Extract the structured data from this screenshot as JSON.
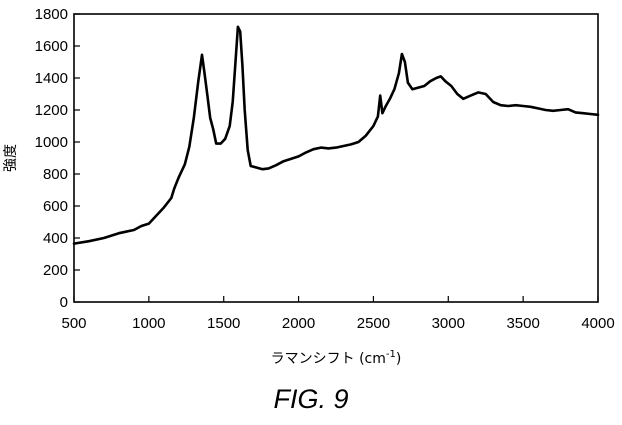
{
  "chart_data": {
    "type": "line",
    "xlabel": "ラマンシフト (cm",
    "xlabel_sup": "-1",
    "xlabel_tail": ")",
    "ylabel": "強度",
    "xlim": [
      500,
      4000
    ],
    "ylim": [
      0,
      1800
    ],
    "x_ticks": [
      500,
      1000,
      1500,
      2000,
      2500,
      3000,
      3500,
      4000
    ],
    "y_ticks": [
      0,
      200,
      400,
      600,
      800,
      1000,
      1200,
      1400,
      1600,
      1800
    ],
    "grid": false,
    "series": [
      {
        "color": "#000000",
        "points": [
          [
            500,
            365
          ],
          [
            600,
            380
          ],
          [
            700,
            400
          ],
          [
            800,
            430
          ],
          [
            900,
            450
          ],
          [
            950,
            475
          ],
          [
            1000,
            490
          ],
          [
            1050,
            540
          ],
          [
            1100,
            590
          ],
          [
            1150,
            650
          ],
          [
            1170,
            710
          ],
          [
            1200,
            780
          ],
          [
            1240,
            860
          ],
          [
            1270,
            970
          ],
          [
            1300,
            1150
          ],
          [
            1330,
            1380
          ],
          [
            1355,
            1545
          ],
          [
            1370,
            1440
          ],
          [
            1390,
            1300
          ],
          [
            1410,
            1150
          ],
          [
            1430,
            1080
          ],
          [
            1450,
            990
          ],
          [
            1480,
            990
          ],
          [
            1510,
            1020
          ],
          [
            1540,
            1100
          ],
          [
            1560,
            1250
          ],
          [
            1580,
            1520
          ],
          [
            1595,
            1720
          ],
          [
            1610,
            1690
          ],
          [
            1625,
            1480
          ],
          [
            1640,
            1200
          ],
          [
            1660,
            950
          ],
          [
            1680,
            850
          ],
          [
            1720,
            840
          ],
          [
            1760,
            830
          ],
          [
            1800,
            835
          ],
          [
            1850,
            855
          ],
          [
            1900,
            880
          ],
          [
            2000,
            910
          ],
          [
            2050,
            935
          ],
          [
            2100,
            955
          ],
          [
            2150,
            965
          ],
          [
            2200,
            960
          ],
          [
            2250,
            965
          ],
          [
            2300,
            975
          ],
          [
            2350,
            985
          ],
          [
            2400,
            1000
          ],
          [
            2450,
            1040
          ],
          [
            2500,
            1100
          ],
          [
            2530,
            1160
          ],
          [
            2545,
            1290
          ],
          [
            2560,
            1180
          ],
          [
            2580,
            1220
          ],
          [
            2610,
            1270
          ],
          [
            2640,
            1330
          ],
          [
            2670,
            1430
          ],
          [
            2690,
            1550
          ],
          [
            2710,
            1500
          ],
          [
            2730,
            1370
          ],
          [
            2760,
            1330
          ],
          [
            2800,
            1340
          ],
          [
            2840,
            1350
          ],
          [
            2880,
            1380
          ],
          [
            2920,
            1400
          ],
          [
            2950,
            1410
          ],
          [
            2980,
            1380
          ],
          [
            3020,
            1350
          ],
          [
            3060,
            1300
          ],
          [
            3100,
            1270
          ],
          [
            3150,
            1290
          ],
          [
            3200,
            1310
          ],
          [
            3250,
            1300
          ],
          [
            3300,
            1250
          ],
          [
            3350,
            1230
          ],
          [
            3400,
            1225
          ],
          [
            3450,
            1230
          ],
          [
            3500,
            1225
          ],
          [
            3550,
            1220
          ],
          [
            3600,
            1210
          ],
          [
            3650,
            1200
          ],
          [
            3700,
            1195
          ],
          [
            3750,
            1200
          ],
          [
            3800,
            1205
          ],
          [
            3850,
            1185
          ],
          [
            3900,
            1180
          ],
          [
            3950,
            1175
          ],
          [
            4000,
            1170
          ]
        ]
      }
    ]
  },
  "caption": "FIG. 9"
}
